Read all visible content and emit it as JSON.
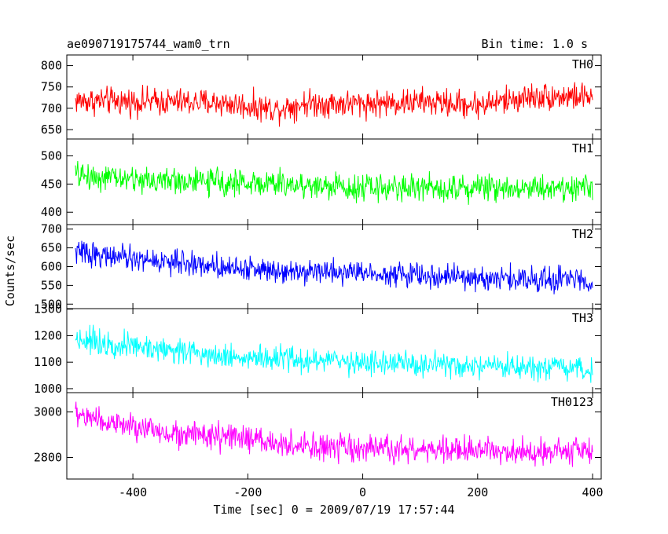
{
  "header": {
    "title": "ae090719175744_wam0_trn",
    "bin_time": "Bin time: 1.0 s"
  },
  "chart_data": {
    "type": "line",
    "xlabel": "Time [sec] 0 = 2009/07/19 17:57:44",
    "ylabel": "Counts/sec",
    "xlim": [
      -515,
      415
    ],
    "x_ticks": [
      -400,
      -200,
      0,
      200,
      400
    ],
    "x_range": [
      -500,
      400
    ],
    "bin_time": 1.0,
    "grid": false,
    "panels": [
      {
        "name": "TH0",
        "color": "#ff0000",
        "ylim": [
          628,
          825
        ],
        "y_ticks": [
          650,
          700,
          750,
          800
        ],
        "baseline_points": [
          [
            -500,
            718
          ],
          [
            -250,
            713
          ],
          [
            -150,
            698
          ],
          [
            -100,
            712
          ],
          [
            0,
            711
          ],
          [
            100,
            715
          ],
          [
            200,
            708
          ],
          [
            300,
            728
          ],
          [
            400,
            727
          ]
        ],
        "noise_amplitude": 30
      },
      {
        "name": "TH1",
        "color": "#00ff00",
        "ylim": [
          378,
          530
        ],
        "y_ticks": [
          400,
          450,
          500
        ],
        "baseline_points": [
          [
            -500,
            466
          ],
          [
            -400,
            458
          ],
          [
            -200,
            452
          ],
          [
            0,
            444
          ],
          [
            200,
            444
          ],
          [
            400,
            444
          ]
        ],
        "noise_amplitude": 22
      },
      {
        "name": "TH2",
        "color": "#0000ff",
        "ylim": [
          488,
          712
        ],
        "y_ticks": [
          500,
          550,
          600,
          650,
          700
        ],
        "baseline_points": [
          [
            -500,
            640
          ],
          [
            -400,
            620
          ],
          [
            -300,
            608
          ],
          [
            -200,
            594
          ],
          [
            0,
            585
          ],
          [
            200,
            568
          ],
          [
            400,
            565
          ]
        ],
        "noise_amplitude": 30
      },
      {
        "name": "TH3",
        "color": "#00ffff",
        "ylim": [
          985,
          1302
        ],
        "y_ticks": [
          1000,
          1100,
          1200,
          1300
        ],
        "baseline_points": [
          [
            -500,
            1190
          ],
          [
            -400,
            1160
          ],
          [
            -300,
            1140
          ],
          [
            -200,
            1115
          ],
          [
            0,
            1100
          ],
          [
            200,
            1080
          ],
          [
            400,
            1070
          ]
        ],
        "noise_amplitude": 45
      },
      {
        "name": "TH0123",
        "color": "#ff00ff",
        "ylim": [
          2705,
          3085
        ],
        "y_ticks": [
          2800,
          3000
        ],
        "baseline_points": [
          [
            -500,
            2990
          ],
          [
            -400,
            2930
          ],
          [
            -300,
            2900
          ],
          [
            -200,
            2880
          ],
          [
            -100,
            2845
          ],
          [
            0,
            2835
          ],
          [
            200,
            2830
          ],
          [
            400,
            2830
          ]
        ],
        "noise_amplitude": 55
      }
    ]
  }
}
